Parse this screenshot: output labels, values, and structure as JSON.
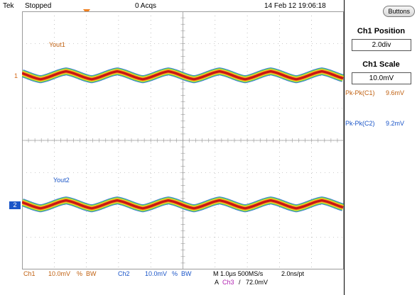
{
  "top_bar": {
    "brand": "Tek",
    "run_state": "Stopped",
    "acqs": "0 Acqs",
    "datetime": "14 Feb 12 19:06:18"
  },
  "waveforms": {
    "ch1_label": "Yout1",
    "ch2_label": "Yout2",
    "ch1_marker": "1",
    "ch2_marker": "2",
    "ch1_color": "#c06010",
    "ch2_color": "#1a55c8"
  },
  "side_menu": {
    "buttons_label": "Buttons",
    "position_title": "Ch1 Position",
    "position_value": "2.0div",
    "scale_title": "Ch1 Scale",
    "scale_value": "10.0mV",
    "meas1_label": "Pk-Pk(C1)",
    "meas1_value": "9.6mV",
    "meas2_label": "Pk-Pk(C2)",
    "meas2_value": "9.2mV"
  },
  "bottom_bar": {
    "ch1": "Ch1",
    "ch1_scale": "10.0mV",
    "ch1_coupling": "%",
    "ch1_bw": "BW",
    "ch2": "Ch2",
    "ch2_scale": "10.0mV",
    "ch2_coupling": "%",
    "ch2_bw": "BW",
    "timebase": "M 1.0µs 500MS/s",
    "sample": "2.0ns/pt",
    "trigger_prefix": "A",
    "trigger_source": "Ch3",
    "trigger_slope": "/",
    "trigger_level": "72.0mV"
  }
}
